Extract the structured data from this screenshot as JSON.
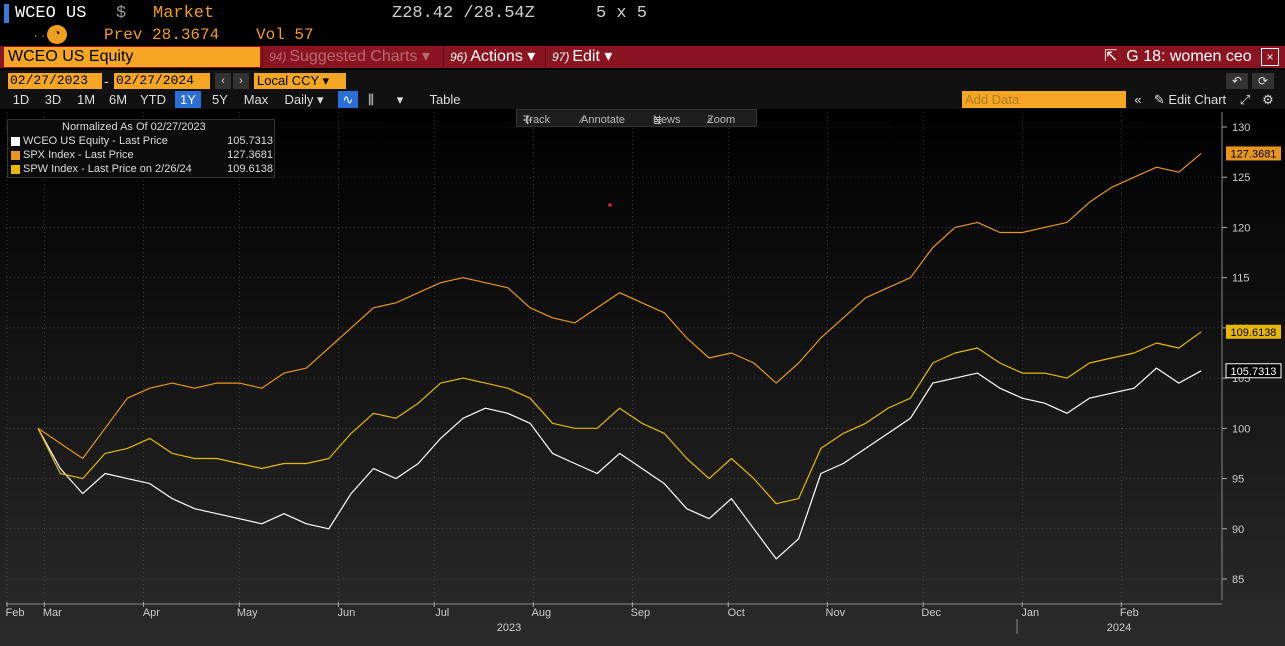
{
  "header": {
    "ticker": "WCEO US",
    "currency": "$",
    "market": "Market",
    "bid_ask": "Z28.42 /28.54Z",
    "size": "5 x 5",
    "dots": "....",
    "prev_label": "Prev",
    "prev_value": "28.3674",
    "vol_label": "Vol",
    "vol_value": "57"
  },
  "menubar": {
    "security": "WCEO US Equity",
    "suggested_num": "94)",
    "suggested": "Suggested Charts",
    "actions_num": "96)",
    "actions": "Actions",
    "edit_num": "97)",
    "edit": "Edit",
    "chart_title": "G 18: women ceo",
    "close": "×"
  },
  "daterange": {
    "start": "02/27/2023",
    "end": "02/27/2024",
    "currency_mode": "Local CCY"
  },
  "toolbar": {
    "periods": [
      "1D",
      "3D",
      "1M",
      "6M",
      "YTD",
      "1Y",
      "5Y",
      "Max"
    ],
    "active_period": "1Y",
    "frequency": "Daily",
    "table": "Table",
    "add_data_placeholder": "Add Data",
    "edit_chart": "Edit Chart"
  },
  "chart_tools": {
    "track": "Track",
    "annotate": "Annotate",
    "news": "News",
    "zoom": "Zoom"
  },
  "legend": {
    "title": "Normalized As Of 02/27/2023",
    "items": [
      {
        "label": "WCEO US Equity - Last Price",
        "value": "105.7313",
        "color": "#ffffff"
      },
      {
        "label": "SPX Index - Last Price",
        "value": "127.3681",
        "color": "#e8961e"
      },
      {
        "label": "SPW Index - Last Price on 2/26/24",
        "value": "109.6138",
        "color": "#e6b800"
      }
    ]
  },
  "colors": {
    "background": "#000000",
    "plot_bg_top": "#000000",
    "plot_bg_bottom": "#2a2a2a",
    "wceo": "#ffffff",
    "spx": "#e8961e",
    "spw": "#e6b800",
    "menubar": "#8a1520",
    "orange": "#f5a623"
  },
  "chart_data": {
    "type": "line",
    "title": "Normalized As Of 02/27/2023",
    "xlabel": "",
    "ylabel": "",
    "ylim": [
      83,
      131
    ],
    "yticks": [
      85,
      90,
      95,
      100,
      105,
      110,
      115,
      120,
      125,
      130
    ],
    "month_labels": [
      "Feb",
      "Mar",
      "Apr",
      "May",
      "Jun",
      "Jul",
      "Aug",
      "Sep",
      "Oct",
      "Nov",
      "Dec",
      "Jan",
      "Feb"
    ],
    "year_labels": [
      "2023",
      "2024"
    ],
    "x": [
      "2023-02-27",
      "2023-03-06",
      "2023-03-13",
      "2023-03-20",
      "2023-03-27",
      "2023-04-03",
      "2023-04-10",
      "2023-04-17",
      "2023-04-24",
      "2023-05-01",
      "2023-05-08",
      "2023-05-15",
      "2023-05-22",
      "2023-05-29",
      "2023-06-05",
      "2023-06-12",
      "2023-06-19",
      "2023-06-26",
      "2023-07-03",
      "2023-07-10",
      "2023-07-17",
      "2023-07-24",
      "2023-07-31",
      "2023-08-07",
      "2023-08-14",
      "2023-08-21",
      "2023-08-28",
      "2023-09-04",
      "2023-09-11",
      "2023-09-18",
      "2023-09-25",
      "2023-10-02",
      "2023-10-09",
      "2023-10-16",
      "2023-10-23",
      "2023-10-30",
      "2023-11-06",
      "2023-11-13",
      "2023-11-20",
      "2023-11-27",
      "2023-12-04",
      "2023-12-11",
      "2023-12-18",
      "2023-12-25",
      "2024-01-01",
      "2024-01-08",
      "2024-01-15",
      "2024-01-22",
      "2024-01-29",
      "2024-02-05",
      "2024-02-12",
      "2024-02-19",
      "2024-02-26"
    ],
    "series": [
      {
        "name": "WCEO US Equity - Last Price",
        "last": 105.7313,
        "values": [
          100.0,
          96.0,
          93.5,
          95.5,
          95.0,
          94.5,
          93.0,
          92.0,
          91.5,
          91.0,
          90.5,
          91.5,
          90.5,
          90.0,
          93.5,
          96.0,
          95.0,
          96.5,
          99.0,
          101.0,
          102.0,
          101.5,
          100.5,
          97.5,
          96.5,
          95.5,
          97.5,
          96.0,
          94.5,
          92.0,
          91.0,
          93.0,
          90.0,
          87.0,
          89.0,
          95.5,
          96.5,
          98.0,
          99.5,
          101.0,
          104.5,
          105.0,
          105.5,
          104.0,
          103.0,
          102.5,
          101.5,
          103.0,
          103.5,
          104.0,
          106.0,
          104.5,
          105.7313
        ]
      },
      {
        "name": "SPX Index - Last Price",
        "last": 127.3681,
        "values": [
          100.0,
          98.5,
          97.0,
          100.0,
          103.0,
          104.0,
          104.5,
          104.0,
          104.5,
          104.5,
          104.0,
          105.5,
          106.0,
          108.0,
          110.0,
          112.0,
          112.5,
          113.5,
          114.5,
          115.0,
          114.5,
          114.0,
          112.0,
          111.0,
          110.5,
          112.0,
          113.5,
          112.5,
          111.5,
          109.0,
          107.0,
          107.5,
          106.5,
          104.5,
          106.5,
          109.0,
          111.0,
          113.0,
          114.0,
          115.0,
          118.0,
          120.0,
          120.5,
          119.5,
          119.5,
          120.0,
          120.5,
          122.5,
          124.0,
          125.0,
          126.0,
          125.5,
          127.3681
        ]
      },
      {
        "name": "SPW Index - Last Price on 2/26/24",
        "last": 109.6138,
        "values": [
          100.0,
          95.5,
          95.0,
          97.5,
          98.0,
          99.0,
          97.5,
          97.0,
          97.0,
          96.5,
          96.0,
          96.5,
          96.5,
          97.0,
          99.5,
          101.5,
          101.0,
          102.5,
          104.5,
          105.0,
          104.5,
          104.0,
          103.0,
          100.5,
          100.0,
          100.0,
          102.0,
          100.5,
          99.5,
          97.0,
          95.0,
          97.0,
          95.0,
          92.5,
          93.0,
          98.0,
          99.5,
          100.5,
          102.0,
          103.0,
          106.5,
          107.5,
          108.0,
          106.5,
          105.5,
          105.5,
          105.0,
          106.5,
          107.0,
          107.5,
          108.5,
          108.0,
          109.6138
        ]
      }
    ]
  }
}
